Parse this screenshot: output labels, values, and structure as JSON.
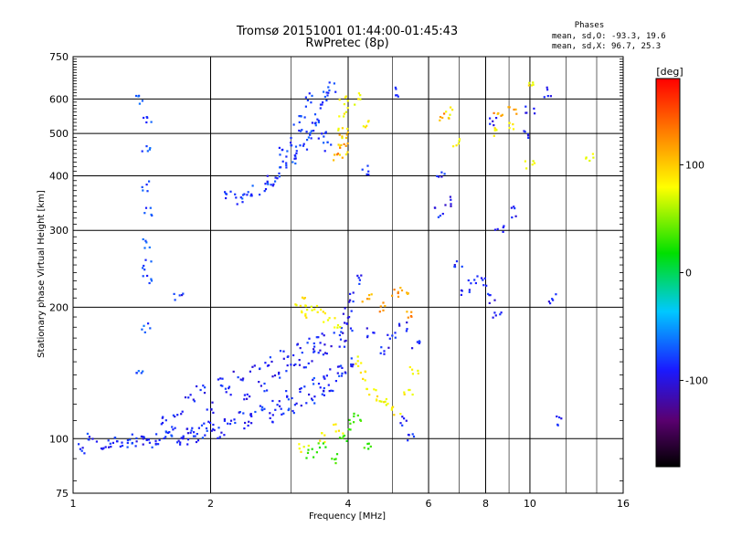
{
  "chart_data": {
    "type": "scatter",
    "title": "Tromsø 20151001 01:44:00-01:45:43",
    "subtitle": "RwPretec (8p)",
    "xlabel": "Frequency [MHz]",
    "ylabel": "Stationary phase Virtual Height [km]",
    "x_scale": "log",
    "y_scale": "log",
    "xlim": [
      1,
      16
    ],
    "ylim": [
      75,
      750
    ],
    "x_ticks": [
      1,
      2,
      4,
      6,
      8,
      10,
      16
    ],
    "y_ticks": [
      75,
      100,
      200,
      300,
      400,
      500,
      600,
      750
    ],
    "grid": true,
    "stats": {
      "heading": "Phases",
      "line1": "mean, sd,O:  -93.3, 19.6",
      "line2": "mean, sd,X:  96.7, 25.3"
    },
    "colorbar": {
      "unit": "[deg]",
      "range": [
        -180,
        180
      ],
      "ticks": [
        100,
        0,
        -100
      ],
      "colors": [
        "#000000",
        "#5a0070",
        "#1a1aff",
        "#00c8ff",
        "#00e000",
        "#ffff00",
        "#ff8000",
        "#ff0000"
      ]
    },
    "clusters": [
      {
        "phase": -95,
        "points": [
          [
            1.05,
            95
          ],
          [
            1.1,
            100
          ],
          [
            1.15,
            96
          ],
          [
            1.2,
            98
          ],
          [
            1.25,
            99
          ],
          [
            1.3,
            97
          ],
          [
            1.35,
            100
          ],
          [
            1.4,
            99
          ],
          [
            1.45,
            102
          ],
          [
            1.5,
            98
          ],
          [
            1.55,
            100
          ],
          [
            1.6,
            101
          ],
          [
            1.65,
            104
          ],
          [
            1.7,
            100
          ],
          [
            1.75,
            99
          ],
          [
            1.8,
            106
          ],
          [
            1.85,
            103
          ],
          [
            1.9,
            100
          ],
          [
            1.95,
            108
          ],
          [
            2.0,
            105
          ],
          [
            2.1,
            103
          ],
          [
            2.2,
            110
          ],
          [
            2.3,
            112
          ],
          [
            2.4,
            108
          ],
          [
            2.5,
            115
          ],
          [
            2.6,
            118
          ],
          [
            2.7,
            112
          ],
          [
            2.8,
            120
          ],
          [
            2.9,
            115
          ],
          [
            3.0,
            125
          ],
          [
            3.1,
            118
          ],
          [
            3.2,
            130
          ],
          [
            3.3,
            122
          ],
          [
            3.4,
            135
          ],
          [
            3.5,
            128
          ],
          [
            3.6,
            140
          ],
          [
            3.7,
            132
          ],
          [
            3.8,
            145
          ],
          [
            3.9,
            138
          ],
          [
            4.0,
            150
          ]
        ]
      },
      {
        "phase": -100,
        "points": [
          [
            1.6,
            110
          ],
          [
            1.7,
            115
          ],
          [
            1.8,
            125
          ],
          [
            1.9,
            130
          ],
          [
            2.0,
            118
          ],
          [
            2.1,
            135
          ],
          [
            2.2,
            128
          ],
          [
            2.3,
            140
          ],
          [
            2.4,
            125
          ],
          [
            2.5,
            145
          ],
          [
            2.6,
            132
          ],
          [
            2.7,
            150
          ],
          [
            2.8,
            138
          ],
          [
            2.9,
            155
          ],
          [
            3.0,
            145
          ],
          [
            3.1,
            160
          ],
          [
            3.2,
            150
          ],
          [
            3.3,
            165
          ],
          [
            3.4,
            155
          ],
          [
            3.5,
            170
          ],
          [
            3.6,
            160
          ],
          [
            3.8,
            175
          ],
          [
            3.9,
            165
          ],
          [
            4.0,
            180
          ],
          [
            4.0,
            195
          ],
          [
            4.1,
            210
          ],
          [
            4.2,
            230
          ],
          [
            4.5,
            175
          ],
          [
            4.8,
            160
          ],
          [
            5.0,
            170
          ],
          [
            5.3,
            180
          ],
          [
            5.6,
            165
          ]
        ]
      },
      {
        "phase": -90,
        "points": [
          [
            2.2,
            360
          ],
          [
            2.3,
            355
          ],
          [
            2.4,
            365
          ],
          [
            2.5,
            370
          ],
          [
            2.6,
            380
          ],
          [
            2.7,
            390
          ],
          [
            2.8,
            400
          ],
          [
            2.9,
            420
          ],
          [
            3.0,
            430
          ],
          [
            3.1,
            450
          ],
          [
            3.2,
            470
          ],
          [
            3.3,
            500
          ],
          [
            3.4,
            540
          ],
          [
            3.5,
            580
          ],
          [
            3.6,
            620
          ],
          [
            3.3,
            600
          ],
          [
            3.2,
            560
          ],
          [
            3.1,
            520
          ],
          [
            3.0,
            480
          ],
          [
            2.9,
            460
          ],
          [
            3.4,
            520
          ],
          [
            3.5,
            490
          ],
          [
            3.6,
            470
          ],
          [
            3.7,
            640
          ]
        ]
      },
      {
        "phase": -85,
        "points": [
          [
            1.4,
            600
          ],
          [
            1.45,
            540
          ],
          [
            1.45,
            460
          ],
          [
            1.45,
            380
          ],
          [
            1.45,
            330
          ],
          [
            1.45,
            280
          ],
          [
            1.45,
            250
          ],
          [
            1.45,
            230
          ],
          [
            1.45,
            180
          ],
          [
            1.4,
            145
          ]
        ]
      },
      {
        "phase": 100,
        "points": [
          [
            3.1,
            200
          ],
          [
            3.2,
            205
          ],
          [
            3.3,
            195
          ],
          [
            3.4,
            200
          ],
          [
            3.6,
            190
          ],
          [
            3.8,
            185
          ],
          [
            4.2,
            150
          ],
          [
            4.3,
            140
          ],
          [
            4.5,
            130
          ],
          [
            4.7,
            125
          ],
          [
            4.9,
            120
          ],
          [
            5.1,
            115
          ],
          [
            5.4,
            130
          ],
          [
            5.6,
            145
          ],
          [
            6.6,
            560
          ],
          [
            6.9,
            480
          ],
          [
            8.5,
            500
          ],
          [
            9.0,
            520
          ],
          [
            10.0,
            650
          ],
          [
            10.0,
            420
          ],
          [
            13.5,
            440
          ],
          [
            3.9,
            460
          ],
          [
            3.9,
            500
          ],
          [
            3.9,
            560
          ],
          [
            3.9,
            600
          ],
          [
            4.2,
            600
          ],
          [
            4.4,
            520
          ],
          [
            3.2,
            95
          ],
          [
            3.5,
            100
          ],
          [
            3.8,
            105
          ]
        ]
      },
      {
        "phase": 130,
        "points": [
          [
            4.4,
            210
          ],
          [
            4.8,
            200
          ],
          [
            5.1,
            215
          ],
          [
            5.3,
            220
          ],
          [
            5.5,
            190
          ],
          [
            8.5,
            550
          ],
          [
            9.2,
            560
          ],
          [
            6.5,
            550
          ],
          [
            3.9,
            490
          ],
          [
            3.9,
            470
          ],
          [
            3.8,
            440
          ]
        ]
      },
      {
        "phase": 20,
        "points": [
          [
            3.3,
            92
          ],
          [
            3.5,
            95
          ],
          [
            3.7,
            90
          ],
          [
            3.9,
            100
          ],
          [
            4.1,
            108
          ],
          [
            4.4,
            95
          ],
          [
            4.2,
            112
          ]
        ]
      },
      {
        "phase": -100,
        "points": [
          [
            6.3,
            330
          ],
          [
            6.4,
            400
          ],
          [
            6.6,
            350
          ],
          [
            7.0,
            250
          ],
          [
            7.2,
            220
          ],
          [
            7.5,
            230
          ],
          [
            8.0,
            230
          ],
          [
            8.3,
            210
          ],
          [
            8.5,
            190
          ],
          [
            8.6,
            300
          ],
          [
            9.2,
            330
          ],
          [
            9.8,
            500
          ],
          [
            10.0,
            570
          ],
          [
            11.0,
            620
          ],
          [
            11.2,
            210
          ],
          [
            11.5,
            110
          ],
          [
            8.3,
            530
          ],
          [
            5.1,
            620
          ],
          [
            4.4,
            410
          ],
          [
            5.3,
            110
          ],
          [
            5.5,
            100
          ],
          [
            1.7,
            210
          ]
        ]
      }
    ]
  }
}
